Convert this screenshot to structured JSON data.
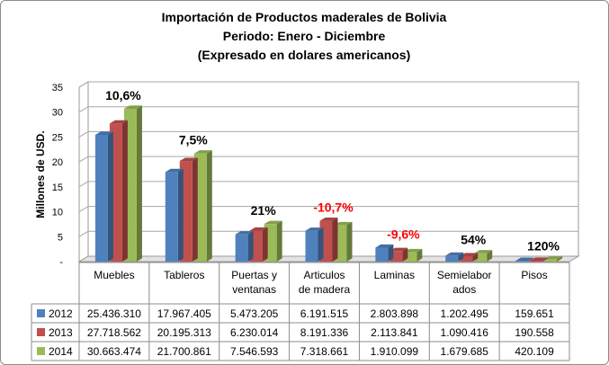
{
  "chart_data": {
    "type": "bar",
    "title": "Importación de Productos maderales de Bolivia",
    "subtitle": [
      "Periodo: Enero - Diciembre",
      "(Expresado en dolares americanos)"
    ],
    "ylabel": "Millones de USD.",
    "ylim": [
      0,
      35
    ],
    "yticks": [
      "35",
      "30",
      "25",
      "20",
      "15",
      "10",
      "5",
      "-"
    ],
    "categories": [
      [
        "Muebles"
      ],
      [
        "Tableros"
      ],
      [
        "Puertas y",
        "ventanas"
      ],
      [
        "Articulos",
        "de madera"
      ],
      [
        "Laminas"
      ],
      [
        "Semielabor",
        "ados"
      ],
      [
        "Pisos"
      ]
    ],
    "series": [
      {
        "name": "2012",
        "color": "#4f81bd",
        "values": [
          25.43631,
          17.967405,
          5.473205,
          6.191515,
          2.803898,
          1.202495,
          0.159651
        ],
        "labels": [
          "25.436.310",
          "17.967.405",
          "5.473.205",
          "6.191.515",
          "2.803.898",
          "1.202.495",
          "159.651"
        ]
      },
      {
        "name": "2013",
        "color": "#c0504d",
        "values": [
          27.718562,
          20.195313,
          6.230014,
          8.191336,
          2.113841,
          1.090416,
          0.190558
        ],
        "labels": [
          "27.718.562",
          "20.195.313",
          "6.230.014",
          "8.191.336",
          "2.113.841",
          "1.090.416",
          "190.558"
        ]
      },
      {
        "name": "2014",
        "color": "#9bbb59",
        "values": [
          30.663474,
          21.700861,
          7.546593,
          7.318661,
          1.910099,
          1.679685,
          0.420109
        ],
        "labels": [
          "30.663.474",
          "21.700.861",
          "7.546.593",
          "7.318.661",
          "1.910.099",
          "1.679.685",
          "420.109"
        ]
      }
    ],
    "annotations": [
      {
        "category": 0,
        "text": "10,6%",
        "color": "#000000"
      },
      {
        "category": 1,
        "text": "7,5%",
        "color": "#000000"
      },
      {
        "category": 2,
        "text": "21%",
        "color": "#000000"
      },
      {
        "category": 3,
        "text": "-10,7%",
        "color": "#ff0000"
      },
      {
        "category": 4,
        "text": "-9,6%",
        "color": "#ff0000"
      },
      {
        "category": 5,
        "text": "54%",
        "color": "#000000"
      },
      {
        "category": 6,
        "text": "120%",
        "color": "#000000"
      }
    ],
    "grid": true,
    "legend": "data-table"
  }
}
